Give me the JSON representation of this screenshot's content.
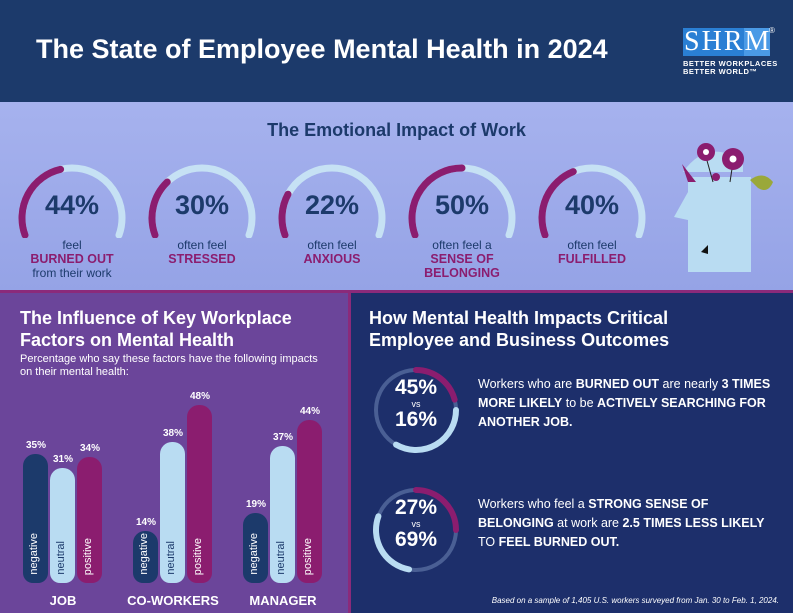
{
  "header": {
    "title": "The State of Employee Mental Health in 2024",
    "logo": {
      "text": "SHRM",
      "tagline1": "BETTER WORKPLACES",
      "tagline2": "BETTER WORLD™"
    }
  },
  "emotional": {
    "title": "The Emotional Impact of Work",
    "gauges": [
      {
        "value": 44,
        "label": "44%",
        "pre": "feel",
        "bold": "BURNED OUT",
        "post": "from their work"
      },
      {
        "value": 30,
        "label": "30%",
        "pre": "often feel",
        "bold": "STRESSED",
        "post": ""
      },
      {
        "value": 22,
        "label": "22%",
        "pre": "often feel",
        "bold": "ANXIOUS",
        "post": ""
      },
      {
        "value": 50,
        "label": "50%",
        "pre": "often feel a",
        "bold": "SENSE OF",
        "post": "BELONGING"
      },
      {
        "value": 40,
        "label": "40%",
        "pre": "often feel",
        "bold": "FULFILLED",
        "post": ""
      }
    ]
  },
  "factors": {
    "title_line1": "The Influence of Key Workplace",
    "title_line2": "Factors on Mental Health",
    "subtitle": "Percentage who say these factors have the following impacts on their mental health:"
  },
  "chart_data": {
    "type": "bar",
    "categories": [
      "JOB",
      "CO-WORKERS",
      "MANAGER"
    ],
    "series": [
      {
        "name": "negative",
        "color": "#1c3a6b",
        "values": [
          35,
          14,
          19
        ]
      },
      {
        "name": "neutral",
        "color": "#b9dcf2",
        "values": [
          31,
          38,
          37
        ]
      },
      {
        "name": "positive",
        "color": "#8b1d6f",
        "values": [
          34,
          48,
          44
        ]
      }
    ],
    "unit": "%",
    "ylim": [
      0,
      50
    ]
  },
  "outcomes": {
    "title_line1": "How Mental Health Impacts Critical",
    "title_line2": "Employee and Business Outcomes",
    "items": [
      {
        "a": "45%",
        "vs": "vs",
        "b": "16%",
        "parts": [
          [
            "Workers who are ",
            ""
          ],
          [
            "BURNED OUT",
            "b"
          ],
          [
            " are nearly ",
            ""
          ],
          [
            "3 TIMES MORE LIKELY",
            "b"
          ],
          [
            " to be ",
            ""
          ],
          [
            "ACTIVELY SEARCHING FOR ANOTHER JOB.",
            "b"
          ]
        ]
      },
      {
        "a": "27%",
        "vs": "vs",
        "b": "69%",
        "parts": [
          [
            "Workers who feel a ",
            ""
          ],
          [
            "STRONG SENSE OF BELONGING",
            "b"
          ],
          [
            " at work are ",
            ""
          ],
          [
            "2.5 TIMES LESS LIKELY",
            "b"
          ],
          [
            " TO ",
            ""
          ],
          [
            "FEEL BURNED OUT.",
            "b"
          ]
        ]
      }
    ],
    "footnote": "Based on a sample of 1,405 U.S. workers surveyed from Jan. 30 to Feb. 1, 2024."
  },
  "colors": {
    "navy": "#1c3a6b",
    "magenta": "#8b1d6f",
    "light_blue": "#b9dcf2",
    "purple": "#6b459a"
  }
}
